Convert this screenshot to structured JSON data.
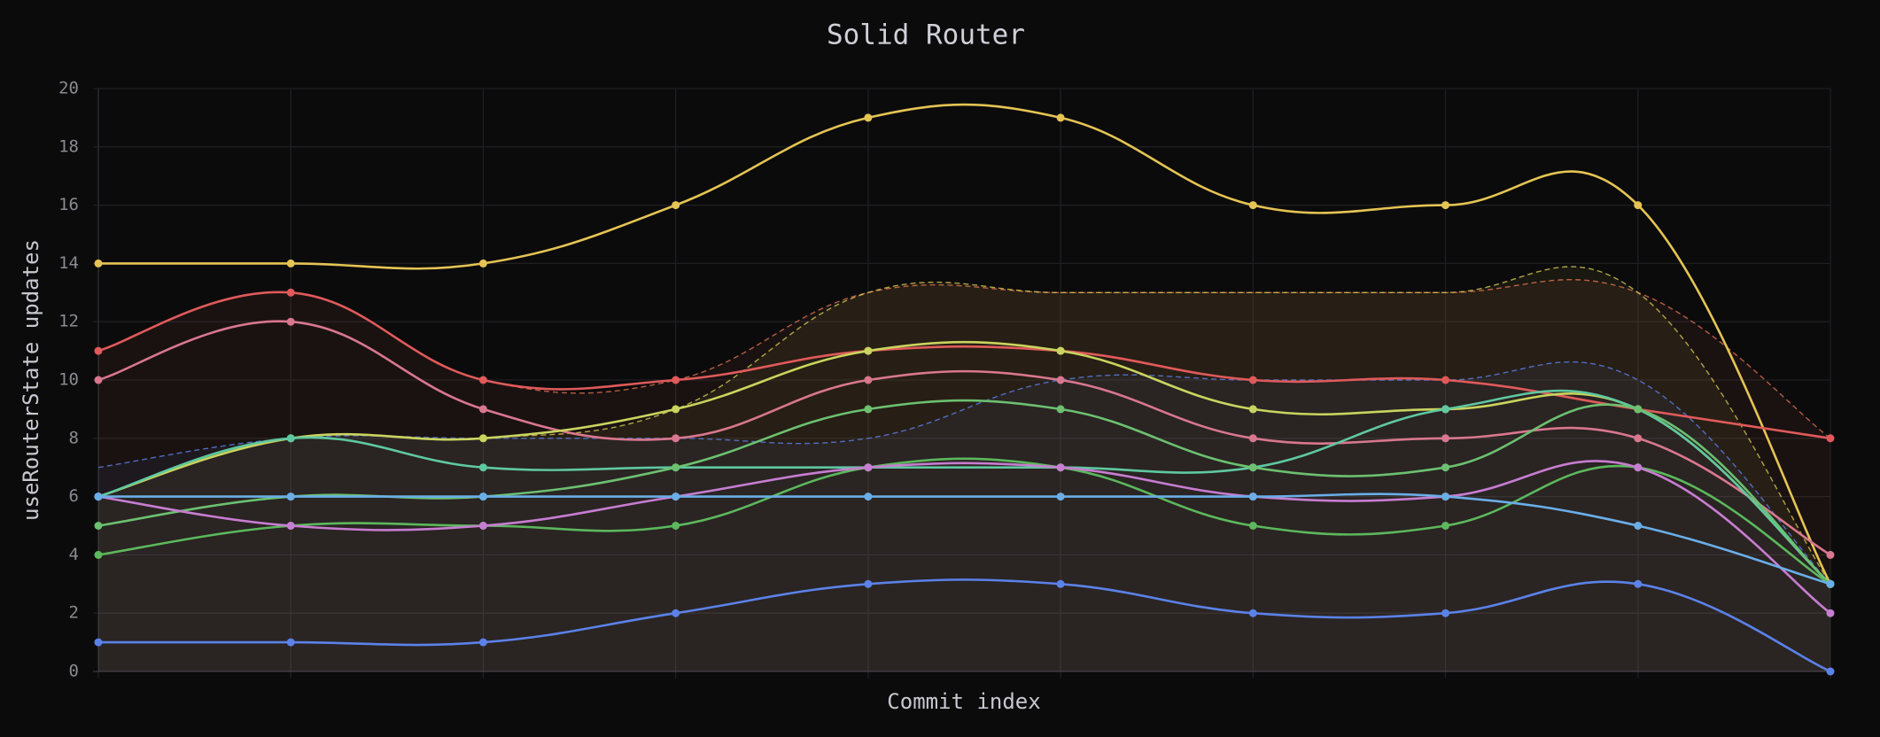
{
  "chart_data": {
    "type": "line",
    "title": "Solid Router",
    "x_label": "Commit index",
    "y_label": "useRouterState updates",
    "categories": [
      null,
      null,
      null,
      null,
      null,
      null,
      null,
      null,
      null,
      null
    ],
    "ylim": [
      0,
      20
    ],
    "yticks": [
      0,
      2,
      4,
      6,
      8,
      10,
      12,
      14,
      16,
      18,
      20
    ],
    "grid": true,
    "series": [
      {
        "color": "#e07050",
        "dashed": true,
        "fill": true,
        "values": [
          11,
          13,
          10,
          10,
          13,
          13,
          13,
          13,
          13,
          8
        ]
      },
      {
        "color": "#d8c850",
        "dashed": true,
        "fill": true,
        "values": [
          6,
          8,
          8,
          9,
          13,
          13,
          13,
          13,
          13,
          3
        ]
      },
      {
        "color": "#5b82e8",
        "dashed": true,
        "fill": true,
        "values": [
          7,
          8,
          8,
          8,
          8,
          10,
          10,
          10,
          10,
          3
        ]
      },
      {
        "color": "#e5c453",
        "values": [
          14,
          14,
          14,
          16,
          19,
          19,
          16,
          16,
          16,
          3
        ]
      },
      {
        "color": "#e05a5a",
        "values": [
          11,
          13,
          10,
          10,
          11,
          11,
          10,
          10,
          9,
          8
        ]
      },
      {
        "color": "#d9778f",
        "values": [
          10,
          12,
          9,
          8,
          10,
          10,
          8,
          8,
          8,
          4
        ]
      },
      {
        "color": "#c9d45e",
        "values": [
          6,
          8,
          8,
          9,
          11,
          11,
          9,
          9,
          9,
          3
        ]
      },
      {
        "color": "#5fc8a0",
        "values": [
          6,
          8,
          7,
          7,
          7,
          7,
          7,
          9,
          9,
          3
        ]
      },
      {
        "color": "#6cc070",
        "values": [
          5,
          6,
          6,
          7,
          9,
          9,
          7,
          7,
          9,
          3
        ]
      },
      {
        "color": "#5cb85c",
        "values": [
          4,
          5,
          5,
          5,
          7,
          7,
          5,
          5,
          7,
          3
        ]
      },
      {
        "color": "#c77dd1",
        "values": [
          6,
          5,
          5,
          6,
          7,
          7,
          6,
          6,
          7,
          2
        ]
      },
      {
        "color": "#6aaee8",
        "values": [
          6,
          6,
          6,
          6,
          6,
          6,
          6,
          6,
          5,
          3
        ]
      },
      {
        "color": "#5b82e8",
        "values": [
          1,
          1,
          1,
          2,
          3,
          3,
          2,
          2,
          3,
          0
        ]
      }
    ]
  }
}
